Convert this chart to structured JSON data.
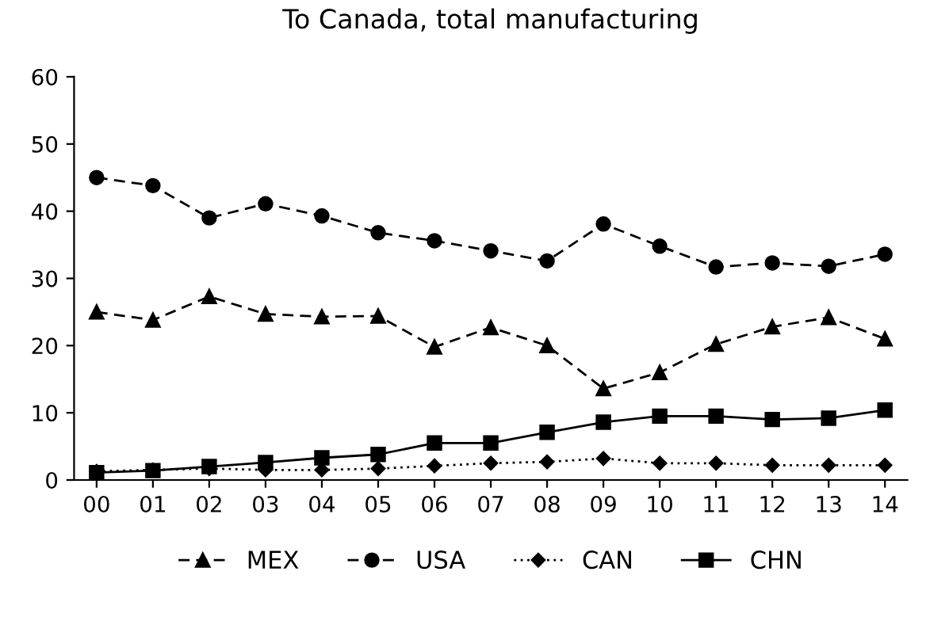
{
  "chart_data": {
    "type": "line",
    "title": "To Canada, total manufacturing",
    "categories": [
      "00",
      "01",
      "02",
      "03",
      "04",
      "05",
      "06",
      "07",
      "08",
      "09",
      "10",
      "11",
      "12",
      "13",
      "14"
    ],
    "series": [
      {
        "name": "MEX",
        "color": "#000000",
        "marker": "triangle",
        "line_style": "dashed",
        "values": [
          25,
          23.8,
          27.3,
          24.7,
          24.3,
          24.4,
          19.8,
          22.7,
          20,
          13.6,
          16,
          20.2,
          22.8,
          24.2,
          21
        ]
      },
      {
        "name": "USA",
        "color": "#000000",
        "marker": "circle",
        "line_style": "dashed",
        "values": [
          45,
          43.8,
          39,
          41.1,
          39.3,
          36.8,
          35.6,
          34.1,
          32.6,
          38.1,
          34.8,
          31.7,
          32.3,
          31.8,
          33.6
        ]
      },
      {
        "name": "CAN",
        "color": "#000000",
        "marker": "diamond",
        "line_style": "dotted",
        "values": [
          1.3,
          1.5,
          1.7,
          1.5,
          1.5,
          1.7,
          2.1,
          2.5,
          2.7,
          3.2,
          2.5,
          2.5,
          2.2,
          2.2,
          2.2
        ]
      },
      {
        "name": "CHN",
        "color": "#000000",
        "marker": "square",
        "line_style": "solid",
        "values": [
          1.1,
          1.4,
          2,
          2.6,
          3.3,
          3.8,
          5.5,
          5.5,
          7.1,
          8.6,
          9.5,
          9.5,
          9,
          9.2,
          10.4
        ]
      }
    ],
    "ylim": [
      0,
      60
    ],
    "yticks": [
      0,
      10,
      20,
      30,
      40,
      50,
      60
    ],
    "grid": false,
    "legend": "bottom"
  }
}
